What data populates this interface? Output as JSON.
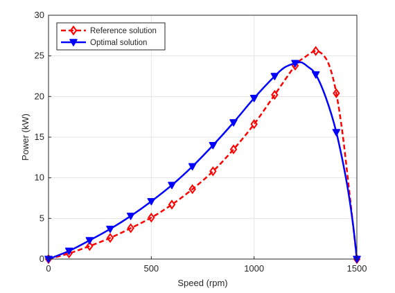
{
  "chart_data": {
    "type": "line",
    "xlabel": "Speed (rpm)",
    "ylabel": "Power (kW)",
    "xlim": [
      0,
      1500
    ],
    "ylim": [
      0,
      30
    ],
    "xticks": [
      0,
      500,
      1000,
      1500
    ],
    "yticks": [
      0,
      5,
      10,
      15,
      20,
      25,
      30
    ],
    "grid": true,
    "legend_position": "top-left",
    "series": [
      {
        "name": "Reference solution",
        "color": "#ff0000",
        "line_style": "dashed",
        "marker": "diamond",
        "x": [
          0,
          100,
          200,
          300,
          400,
          500,
          600,
          700,
          800,
          900,
          1000,
          1100,
          1200,
          1300,
          1400,
          1500
        ],
        "y": [
          0,
          0.7,
          1.6,
          2.6,
          3.8,
          5.1,
          6.7,
          8.6,
          10.8,
          13.5,
          16.6,
          20.2,
          23.8,
          25.6,
          20.4,
          0
        ],
        "curve_x": [
          0,
          100,
          200,
          300,
          400,
          500,
          600,
          700,
          800,
          900,
          1000,
          1100,
          1200,
          1250,
          1300,
          1340,
          1370,
          1400,
          1430,
          1460,
          1480,
          1500
        ],
        "curve_y": [
          0,
          0.7,
          1.6,
          2.6,
          3.8,
          5.1,
          6.7,
          8.6,
          10.8,
          13.5,
          16.6,
          20.2,
          23.8,
          24.9,
          25.6,
          25.0,
          23.5,
          20.4,
          15.5,
          9.0,
          4.5,
          0
        ]
      },
      {
        "name": "Optimal solution",
        "color": "#0000ff",
        "line_style": "solid",
        "marker": "triangle-down",
        "x": [
          0,
          100,
          200,
          300,
          400,
          500,
          600,
          700,
          800,
          900,
          1000,
          1100,
          1200,
          1300,
          1400,
          1500
        ],
        "y": [
          0,
          1.0,
          2.3,
          3.7,
          5.3,
          7.1,
          9.1,
          11.4,
          14.0,
          16.8,
          19.8,
          22.5,
          24.1,
          22.7,
          15.6,
          0
        ],
        "curve_x": [
          0,
          100,
          200,
          300,
          400,
          500,
          600,
          700,
          800,
          900,
          1000,
          1100,
          1150,
          1200,
          1230,
          1260,
          1300,
          1350,
          1400,
          1450,
          1480,
          1500
        ],
        "curve_y": [
          0,
          1.0,
          2.3,
          3.7,
          5.3,
          7.1,
          9.1,
          11.4,
          14.0,
          16.8,
          19.8,
          22.5,
          23.6,
          24.1,
          24.2,
          23.7,
          22.7,
          19.8,
          15.6,
          9.5,
          4.5,
          0
        ]
      }
    ]
  }
}
